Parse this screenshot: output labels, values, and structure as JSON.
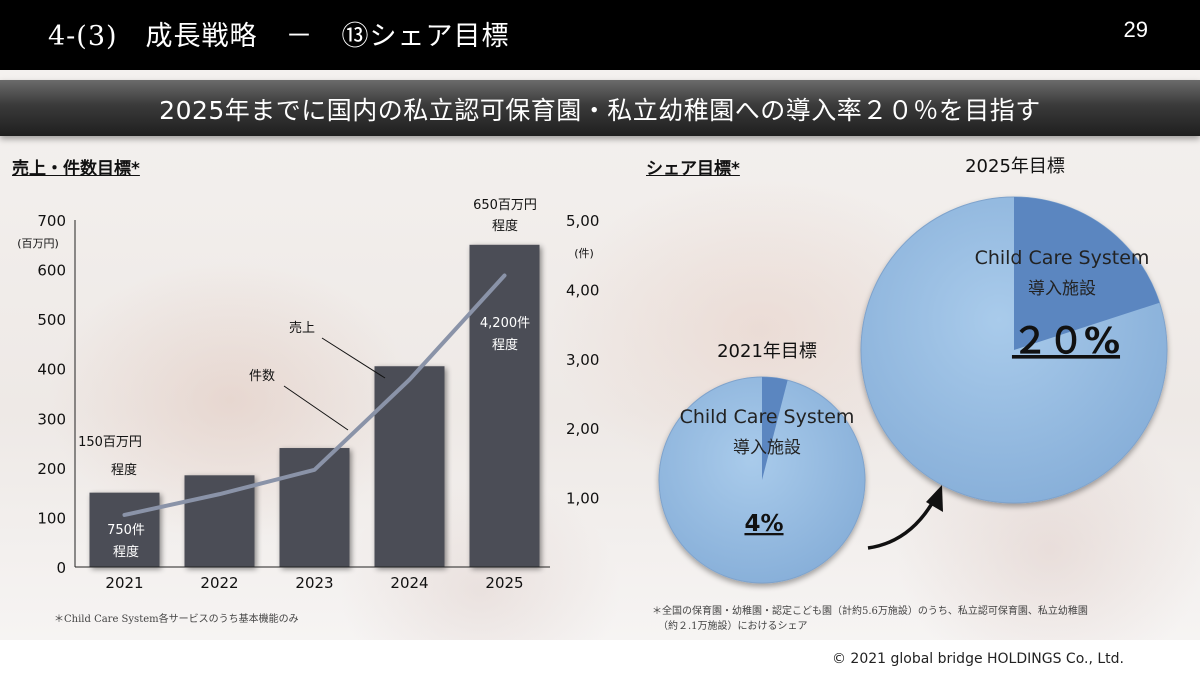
{
  "header": {
    "title": "4-(3)　成長戦略　－　⑬シェア目標",
    "page_number": "29"
  },
  "banner": {
    "text": "2025年までに国内の私立認可保育園・私立幼稚園への導入率２０％を目指す"
  },
  "left": {
    "section_title": "売上・件数目標*",
    "footnote": "＊Child Care System各サービスのうち基本機能のみ"
  },
  "right": {
    "section_title": "シェア目標*",
    "footnote_line1": "＊全国の保育園・幼稚園・認定こども園（計約5.6万施設）のうち、私立認可保育園、私立幼稚園",
    "footnote_line2": "（約２.1万施設）におけるシェア",
    "pie_2021": {
      "title": "2021年目標",
      "label_line1": "Child Care System",
      "label_line2": "導入施設",
      "value_label": "4%",
      "share": 0.04
    },
    "pie_2025": {
      "title": "2025年目標",
      "label_line1": "Child Care System",
      "label_line2": "導入施設",
      "value_label": "２０%",
      "share": 0.2
    },
    "colors": {
      "pie_base": "#97bde3",
      "pie_slice": "#5b86c0"
    }
  },
  "copyright": "© 2021 global bridge HOLDINGS Co., Ltd.",
  "chart_data": {
    "type": "bar",
    "categories": [
      "2021",
      "2022",
      "2023",
      "2024",
      "2025"
    ],
    "series": [
      {
        "axis": "left",
        "type": "bar",
        "values": [
          150,
          185,
          240,
          405,
          650
        ]
      },
      {
        "axis": "right",
        "type": "line",
        "values": [
          750,
          1050,
          1400,
          2700,
          4200
        ]
      }
    ],
    "y_left": {
      "unit_label": "(百万円)",
      "ylim": [
        0,
        700
      ],
      "ticks": [
        "0",
        "100",
        "200",
        "300",
        "400",
        "500",
        "600",
        "700"
      ]
    },
    "y_right": {
      "unit_label": "(件)",
      "ylim": [
        0,
        5000
      ],
      "ticks": [
        "1,000",
        "2,000",
        "3,000",
        "4,000",
        "5,000"
      ]
    },
    "annotations": {
      "bar_2021_line1": "150百万円",
      "bar_2021_line2": "程度",
      "bar_2025_line1": "650百万円",
      "bar_2025_line2": "程度",
      "count_2021_line1": "750件",
      "count_2021_line2": "程度",
      "count_2025_line1": "4,200件",
      "count_2025_line2": "程度",
      "sales_label": "売上",
      "count_label": "件数"
    },
    "colors": {
      "bar": "#4c4e57",
      "line": "#8a93a8"
    },
    "grid": false,
    "legend": "none"
  }
}
